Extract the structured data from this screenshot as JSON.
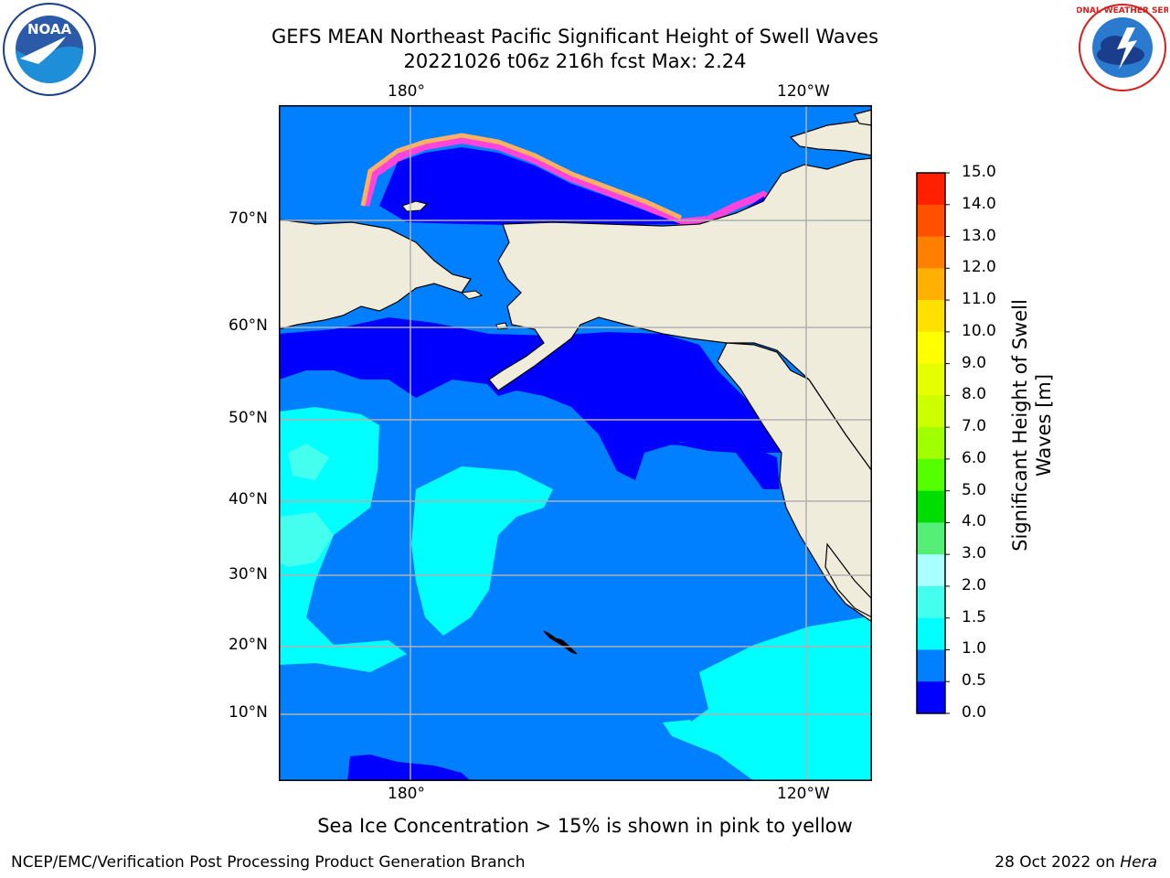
{
  "header": {
    "title_line1": "GEFS MEAN Northeast Pacific Significant Height of Swell Waves",
    "title_line2": "20221026 t06z 216h fcst   Max: 2.24"
  },
  "logos": {
    "left": {
      "text": "NOAA",
      "ring_text": "NATIONAL OCEANIC AND ATMOSPHERIC ADMINISTRATION · U.S. DEPARTMENT OF COMMERCE"
    },
    "right": {
      "ring_text": "NATIONAL WEATHER SERVICE"
    }
  },
  "map": {
    "lon_labels_top": [
      "180°",
      "120°W"
    ],
    "lon_labels_bottom": [
      "180°",
      "120°W"
    ],
    "lat_labels": [
      "70°N",
      "60°N",
      "50°N",
      "40°N",
      "30°N",
      "20°N",
      "10°N"
    ],
    "colors": {
      "land": "#efecdc",
      "band_0_0_5": "#0000ff",
      "band_0_5_1_0": "#0080ff",
      "band_1_0_1_5": "#00ffff",
      "band_1_5_2_0": "#44ffee",
      "ice_pink": "#ff44dd",
      "ice_yellow": "#ffdd44",
      "ice_orange": "#ffb060",
      "grid": "#b0b0b0"
    }
  },
  "colorbar": {
    "label_line1": "Significant Height of Swell",
    "label_line2": "Waves [m]",
    "ticks": [
      "15.0",
      "14.0",
      "13.0",
      "12.0",
      "11.0",
      "10.0",
      "9.0",
      "8.0",
      "7.0",
      "6.0",
      "5.0",
      "4.0",
      "3.0",
      "2.0",
      "1.5",
      "1.0",
      "0.5",
      "0.0"
    ],
    "colors": [
      "#ff0000",
      "#ff2000",
      "#ff5000",
      "#ff8000",
      "#ffb000",
      "#ffe000",
      "#ffff00",
      "#e6ff00",
      "#ccff00",
      "#a0ff00",
      "#55ff00",
      "#00dd00",
      "#55ee77",
      "#aaffff",
      "#44ffee",
      "#00ffff",
      "#0080ff",
      "#0000ff"
    ]
  },
  "footer": {
    "sea_ice_note": "Sea Ice Concentration > 15% is shown in pink to yellow",
    "branch": "NCEP/EMC/Verification Post Processing Product Generation Branch",
    "date_prefix": "28 Oct 2022 on ",
    "machine": "Hera"
  }
}
